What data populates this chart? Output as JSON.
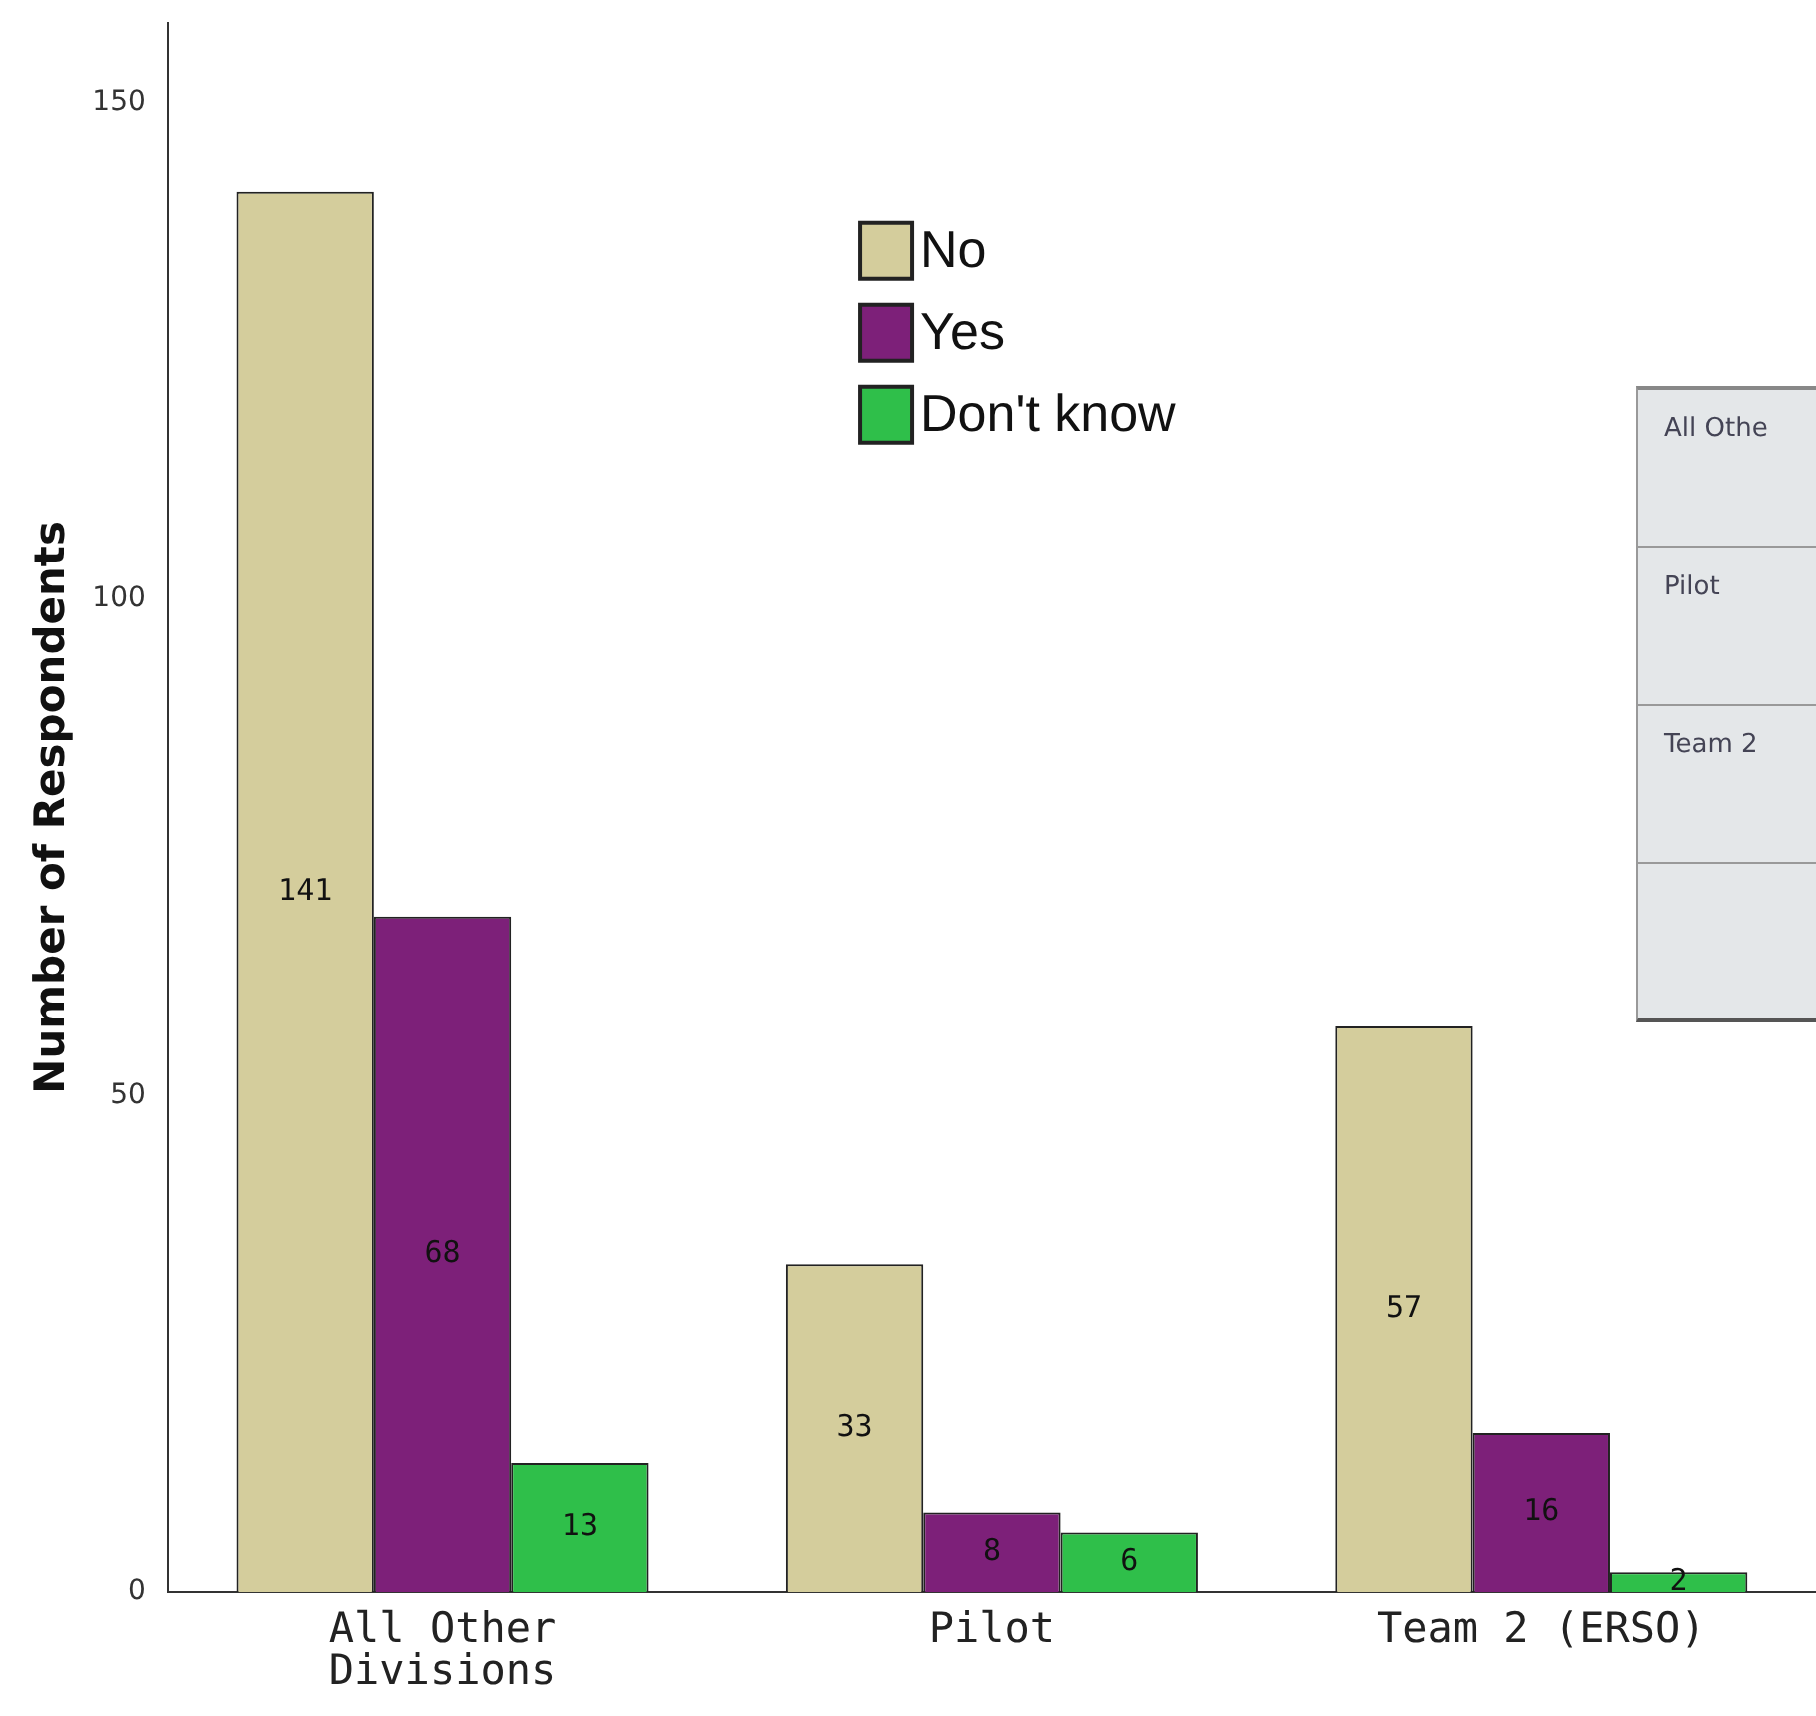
{
  "chart_data": {
    "type": "bar",
    "ylabel": "Number of Respondents",
    "categories": [
      "All Other Divisions",
      "Pilot",
      "Team 2 (ERSO)"
    ],
    "series": [
      {
        "name": "No",
        "color": "#d4cd9c",
        "values": [
          141,
          33,
          57
        ]
      },
      {
        "name": "Yes",
        "color": "#7d2079",
        "values": [
          68,
          8,
          16
        ]
      },
      {
        "name": "Don't know",
        "color": "#2fbf4a",
        "values": [
          13,
          6,
          2
        ]
      }
    ],
    "ylim": [
      0,
      158
    ],
    "yticks": [
      0,
      50,
      100,
      150
    ],
    "grid": false,
    "legend": "top",
    "data_labels": true,
    "annotations": [
      "All Othe",
      "Pilot",
      "Team 2"
    ]
  }
}
